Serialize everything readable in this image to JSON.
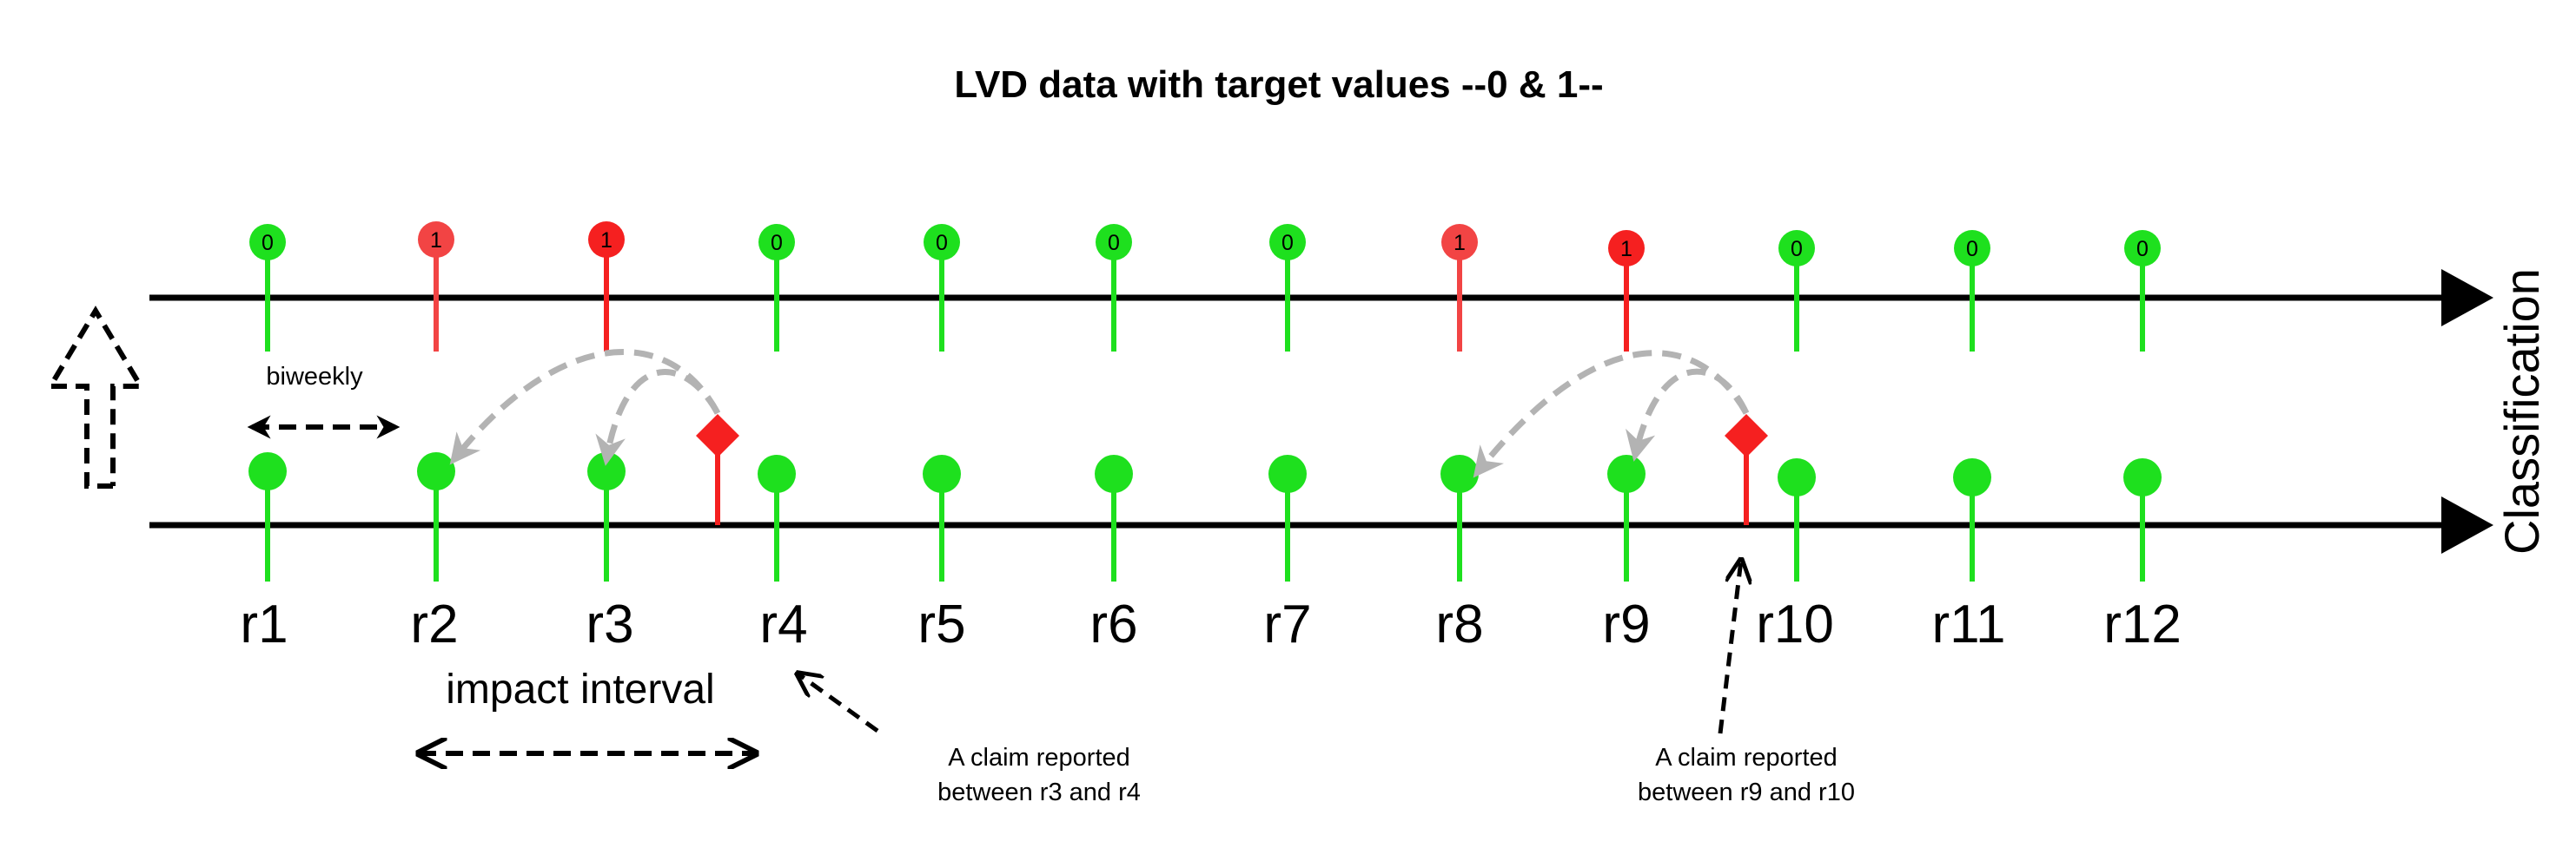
{
  "title": "LVD data with target values --0 & 1--",
  "axis_label": "Classification",
  "colors": {
    "green": "#1ee01e",
    "red": "#f52020",
    "light_red": "#f24444",
    "gray_arrow": "#b3b3b3",
    "black": "#000000"
  },
  "top_row": [
    {
      "value": "0",
      "class": "green"
    },
    {
      "value": "1",
      "class": "light_red"
    },
    {
      "value": "1",
      "class": "red"
    },
    {
      "value": "0",
      "class": "green"
    },
    {
      "value": "0",
      "class": "green"
    },
    {
      "value": "0",
      "class": "green"
    },
    {
      "value": "0",
      "class": "green"
    },
    {
      "value": "1",
      "class": "light_red"
    },
    {
      "value": "1",
      "class": "red"
    },
    {
      "value": "0",
      "class": "green"
    },
    {
      "value": "0",
      "class": "green"
    },
    {
      "value": "0",
      "class": "green"
    }
  ],
  "bottom_labels": [
    "r1",
    "r2",
    "r3",
    "r4",
    "r5",
    "r6",
    "r7",
    "r8",
    "r9",
    "r10",
    "r11",
    "r12"
  ],
  "labels": {
    "biweekly": "biweekly",
    "impact_interval": "impact interval",
    "claim1_line1": "A  claim reported",
    "claim1_line2": "between r3 and r4",
    "claim2_line1": "A  claim reported",
    "claim2_line2": "between r9 and r10"
  },
  "icons": {
    "up_arrow": "dashed-up-arrow-icon",
    "claim_marker": "red-diamond-icon"
  }
}
